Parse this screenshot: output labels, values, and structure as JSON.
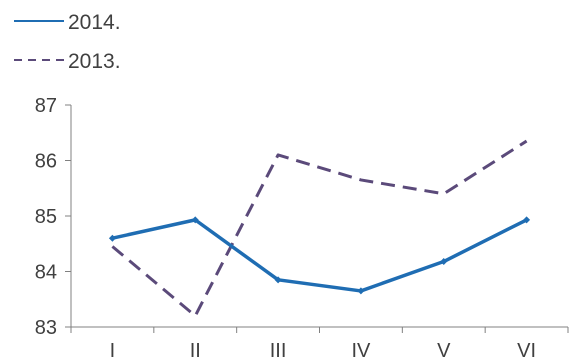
{
  "chart_data": {
    "type": "line",
    "categories": [
      "I",
      "II",
      "III",
      "IV",
      "V",
      "VI"
    ],
    "ylim": [
      83,
      87
    ],
    "yticks": [
      "83",
      "84",
      "85",
      "86",
      "87"
    ],
    "legend_placement": "top-left",
    "grid": false,
    "series": [
      {
        "name": "2014.",
        "values": [
          84.6,
          84.93,
          83.85,
          83.65,
          84.18,
          84.93
        ],
        "color": "#1f6db3",
        "style": "solid"
      },
      {
        "name": "2013.",
        "values": [
          84.45,
          83.2,
          86.1,
          85.65,
          85.4,
          86.35
        ],
        "color": "#5b4a7a",
        "style": "dashed"
      }
    ]
  }
}
